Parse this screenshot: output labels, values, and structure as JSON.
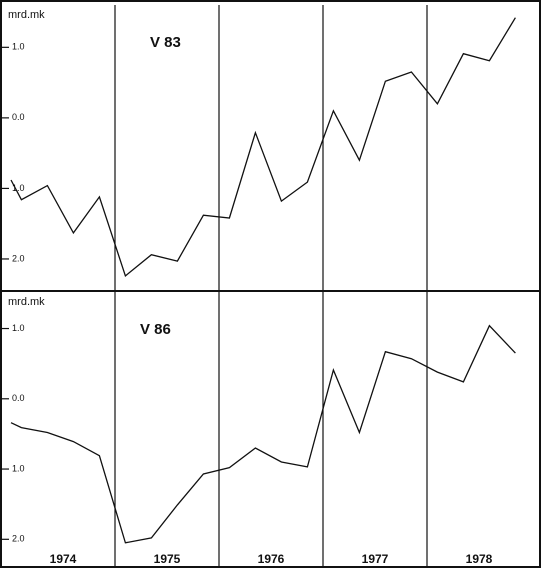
{
  "chart_data": [
    {
      "type": "line",
      "subtitle": "V 83",
      "ylabel": "mrd.mk",
      "color": "#111111",
      "x": [
        1974.0,
        1974.1,
        1974.35,
        1974.6,
        1974.85,
        1975.1,
        1975.35,
        1975.6,
        1975.85,
        1976.1,
        1976.35,
        1976.6,
        1976.85,
        1977.1,
        1977.35,
        1977.6,
        1977.85,
        1978.1,
        1978.35,
        1978.6,
        1978.85
      ],
      "values": [
        -0.88,
        -1.16,
        -0.96,
        -1.63,
        -1.12,
        -2.24,
        -1.94,
        -2.03,
        -1.38,
        -1.42,
        -0.21,
        -1.18,
        -0.91,
        0.1,
        -0.6,
        0.52,
        0.65,
        0.2,
        0.91,
        0.81,
        1.42
      ],
      "xlim": [
        1974,
        1979
      ],
      "ylim": [
        -2.44,
        1.6
      ],
      "xticks": [
        1975,
        1976,
        1977,
        1978
      ],
      "yticks": [
        {
          "value": 1,
          "label": "1.0"
        },
        {
          "value": 0,
          "label": "0.0"
        },
        {
          "value": -1,
          "label": "1.0"
        },
        {
          "value": -2,
          "label": "2.0"
        }
      ]
    },
    {
      "type": "line",
      "subtitle": "V 86",
      "ylabel": "mrd.mk",
      "color": "#111111",
      "x": [
        1974.0,
        1974.1,
        1974.35,
        1974.6,
        1974.85,
        1975.1,
        1975.35,
        1975.6,
        1975.85,
        1976.1,
        1976.35,
        1976.6,
        1976.85,
        1977.1,
        1977.35,
        1977.6,
        1977.85,
        1978.1,
        1978.35,
        1978.6,
        1978.85
      ],
      "values": [
        -0.34,
        -0.41,
        -0.48,
        -0.61,
        -0.81,
        -2.05,
        -1.98,
        -1.51,
        -1.07,
        -0.98,
        -0.7,
        -0.9,
        -0.97,
        0.41,
        -0.48,
        0.67,
        0.57,
        0.38,
        0.24,
        1.04,
        0.65
      ],
      "xlim": [
        1974,
        1979
      ],
      "ylim": [
        -2.38,
        1.52
      ],
      "xticks": [
        1975,
        1976,
        1977,
        1978
      ],
      "yticks": [
        {
          "value": 1,
          "label": "1.0"
        },
        {
          "value": 0,
          "label": "0.0"
        },
        {
          "value": -1,
          "label": "1.0"
        },
        {
          "value": -2,
          "label": "2.0"
        }
      ],
      "x_labels": [
        "1974",
        "1975",
        "1976",
        "1977",
        "1978"
      ]
    }
  ]
}
